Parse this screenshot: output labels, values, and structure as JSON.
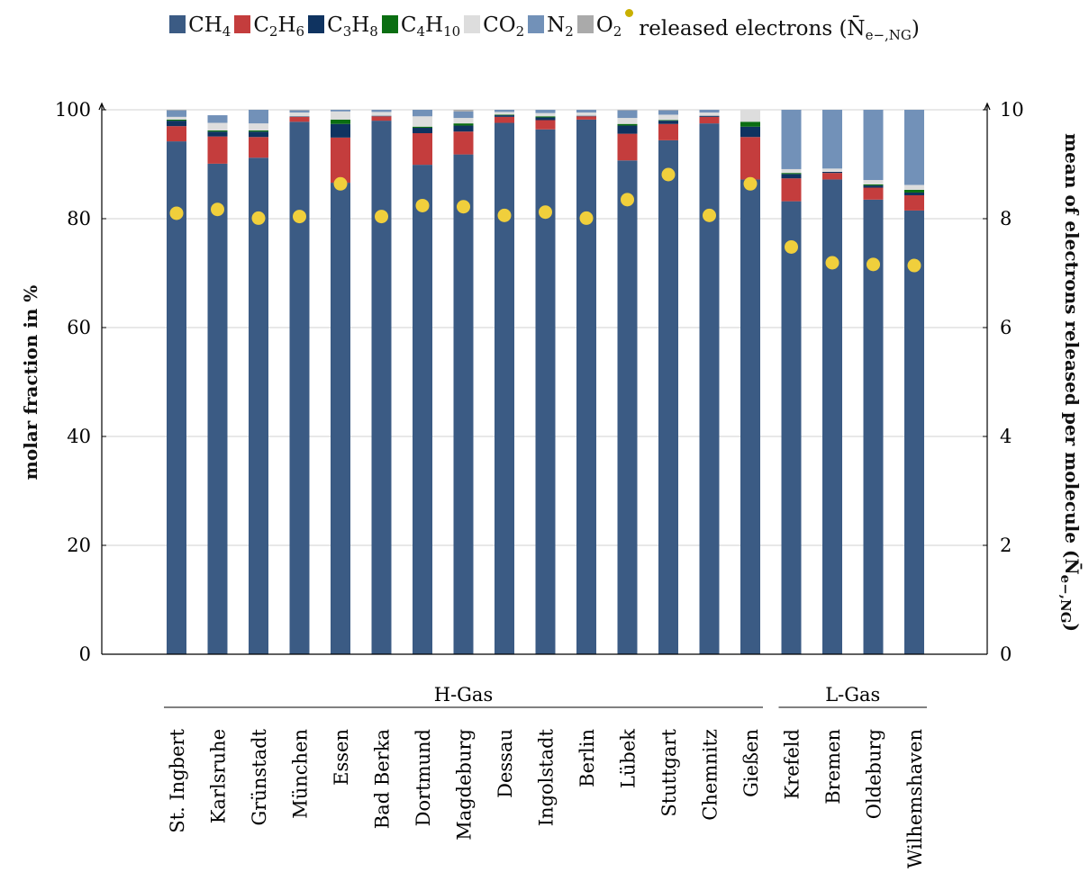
{
  "chart_data": {
    "type": "bar",
    "categories": [
      "St. Ingbert",
      "Karlsruhe",
      "Grünstadt",
      "München",
      "Essen",
      "Bad Berka",
      "Dortmund",
      "Magdeburg",
      "Dessau",
      "Ingolstadt",
      "Berlin",
      "Lübek",
      "Stuttgart",
      "Chemnitz",
      "Gießen",
      "Krefeld",
      "Bremen",
      "Oldeburg",
      "Wilhemshaven"
    ],
    "groups": [
      {
        "label": "H-Gas",
        "from": 0,
        "to": 14
      },
      {
        "label": "L-Gas",
        "from": 15,
        "to": 18
      }
    ],
    "series": [
      {
        "name": "CH4",
        "legend_html": "CH<span class='sub'>4</span>",
        "color": "#3b5b84",
        "values": [
          94.2,
          90.1,
          91.2,
          97.8,
          86.6,
          98.0,
          89.9,
          91.8,
          97.6,
          96.4,
          98.2,
          90.7,
          94.4,
          97.5,
          87.2,
          83.2,
          87.2,
          83.5,
          81.5
        ]
      },
      {
        "name": "C2H6",
        "legend_html": "C<span class='sub'>2</span>H<span class='sub'>6</span>",
        "color": "#c43d3d",
        "values": [
          2.8,
          5.0,
          3.8,
          0.9,
          8.3,
          0.8,
          5.8,
          4.2,
          1.1,
          1.7,
          0.6,
          4.9,
          3.0,
          1.2,
          7.8,
          4.2,
          1.2,
          2.2,
          2.8
        ]
      },
      {
        "name": "C3H8",
        "legend_html": "C<span class='sub'>3</span>H<span class='sub'>8</span>",
        "color": "#0f3360",
        "values": [
          1.0,
          0.9,
          1.0,
          0.1,
          2.5,
          0.1,
          1.0,
          1.1,
          0.3,
          0.5,
          0.1,
          1.5,
          0.6,
          0.2,
          1.9,
          0.8,
          0.2,
          0.4,
          0.5
        ]
      },
      {
        "name": "C4H10",
        "legend_html": "C<span class='sub'>4</span>H<span class='sub'>10</span>",
        "color": "#0b6e12",
        "values": [
          0.2,
          0.2,
          0.2,
          0.0,
          0.8,
          0.0,
          0.2,
          0.4,
          0.1,
          0.2,
          0.0,
          0.3,
          0.1,
          0.0,
          0.9,
          0.2,
          0.0,
          0.2,
          0.5
        ]
      },
      {
        "name": "CO2",
        "legend_html": "CO<span class='sub'>2</span>",
        "color": "#dddddd",
        "values": [
          0.5,
          1.4,
          1.3,
          0.7,
          1.5,
          0.7,
          1.9,
          1.0,
          0.5,
          0.6,
          0.6,
          1.1,
          1.0,
          0.6,
          2.2,
          0.7,
          0.6,
          0.8,
          0.9
        ]
      },
      {
        "name": "N2",
        "legend_html": "N<span class='sub'>2</span>",
        "color": "#7291b8",
        "values": [
          1.2,
          1.4,
          2.5,
          0.4,
          0.3,
          0.4,
          1.2,
          1.2,
          0.4,
          0.6,
          0.5,
          1.4,
          0.8,
          0.5,
          0.0,
          10.9,
          10.8,
          12.9,
          13.8
        ]
      },
      {
        "name": "O2",
        "legend_html": "O<span class='sub'>2</span>",
        "color": "#aaaaaa",
        "values": [
          0.1,
          0.0,
          0.0,
          0.1,
          0.0,
          0.0,
          0.0,
          0.3,
          0.0,
          0.0,
          0.0,
          0.1,
          0.1,
          0.0,
          0.0,
          0.0,
          0.0,
          0.0,
          0.0
        ]
      }
    ],
    "scatter": {
      "name": "released electrons",
      "legend_html": "released electrons (N̄<span class='sub'>e−,NG</span>)",
      "color": "#f0cf3c",
      "values": [
        8.1,
        8.17,
        8.01,
        8.04,
        8.64,
        8.04,
        8.24,
        8.22,
        8.06,
        8.12,
        8.01,
        8.35,
        8.81,
        8.06,
        8.64,
        7.48,
        7.19,
        7.16,
        7.14
      ]
    },
    "ylabel": "molar fraction in %",
    "y2label": "mean of electrons released per molecule (N̄",
    "y2label_sub": "e−,NG",
    "y2label_close": ")",
    "ylim": [
      0,
      100
    ],
    "y2lim": [
      0,
      10
    ],
    "yticks": [
      0,
      20,
      40,
      60,
      80,
      100
    ],
    "y2ticks": [
      0,
      2,
      4,
      6,
      8,
      10
    ],
    "grid": true,
    "legend_position": "top"
  }
}
